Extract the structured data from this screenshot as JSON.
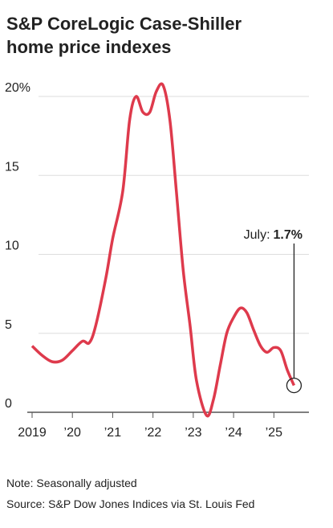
{
  "chart_data": {
    "type": "line",
    "title": [
      "S&P CoreLogic Case-Shiller",
      "home price indexes"
    ],
    "x": [
      2019.0,
      2019.25,
      2019.5,
      2019.75,
      2020.0,
      2020.25,
      2020.42,
      2020.58,
      2020.83,
      2021.0,
      2021.25,
      2021.42,
      2021.58,
      2021.75,
      2021.92,
      2022.08,
      2022.25,
      2022.42,
      2022.58,
      2022.75,
      2022.92,
      2023.08,
      2023.33,
      2023.5,
      2023.67,
      2023.83,
      2024.0,
      2024.17,
      2024.33,
      2024.5,
      2024.67,
      2024.83,
      2025.0,
      2025.17,
      2025.33,
      2025.5
    ],
    "series": [
      {
        "color": "#de3a4c",
        "values": [
          4.2,
          3.6,
          3.2,
          3.3,
          3.9,
          4.5,
          4.4,
          5.5,
          8.5,
          11.0,
          14.0,
          18.5,
          20.0,
          19.0,
          19.0,
          20.3,
          20.7,
          18.5,
          14.0,
          9.0,
          5.5,
          2.0,
          -0.2,
          0.8,
          3.0,
          5.0,
          6.0,
          6.6,
          6.3,
          5.2,
          4.2,
          3.8,
          4.1,
          3.9,
          2.7,
          1.7
        ]
      }
    ],
    "annotation": {
      "text": "July:",
      "x": 2025.5,
      "value": 1.7,
      "value_label": "1.7%"
    },
    "xlim": [
      2019,
      2025.87
    ],
    "xticks": [
      {
        "value": 2019,
        "label": "2019"
      },
      {
        "value": 2020,
        "label": "’20"
      },
      {
        "value": 2021,
        "label": "’21"
      },
      {
        "value": 2022,
        "label": "’22"
      },
      {
        "value": 2023,
        "label": "’23"
      },
      {
        "value": 2024,
        "label": "’24"
      },
      {
        "value": 2025,
        "label": "’25"
      }
    ],
    "ylim": [
      0,
      20
    ],
    "yticks": [
      0,
      5,
      10,
      15,
      {
        "value": 20,
        "label": "20%"
      }
    ],
    "grid": true,
    "notes": [
      "Note: Seasonally adjusted",
      "Source: S&P Dow Jones Indices via St. Louis Fed"
    ]
  }
}
